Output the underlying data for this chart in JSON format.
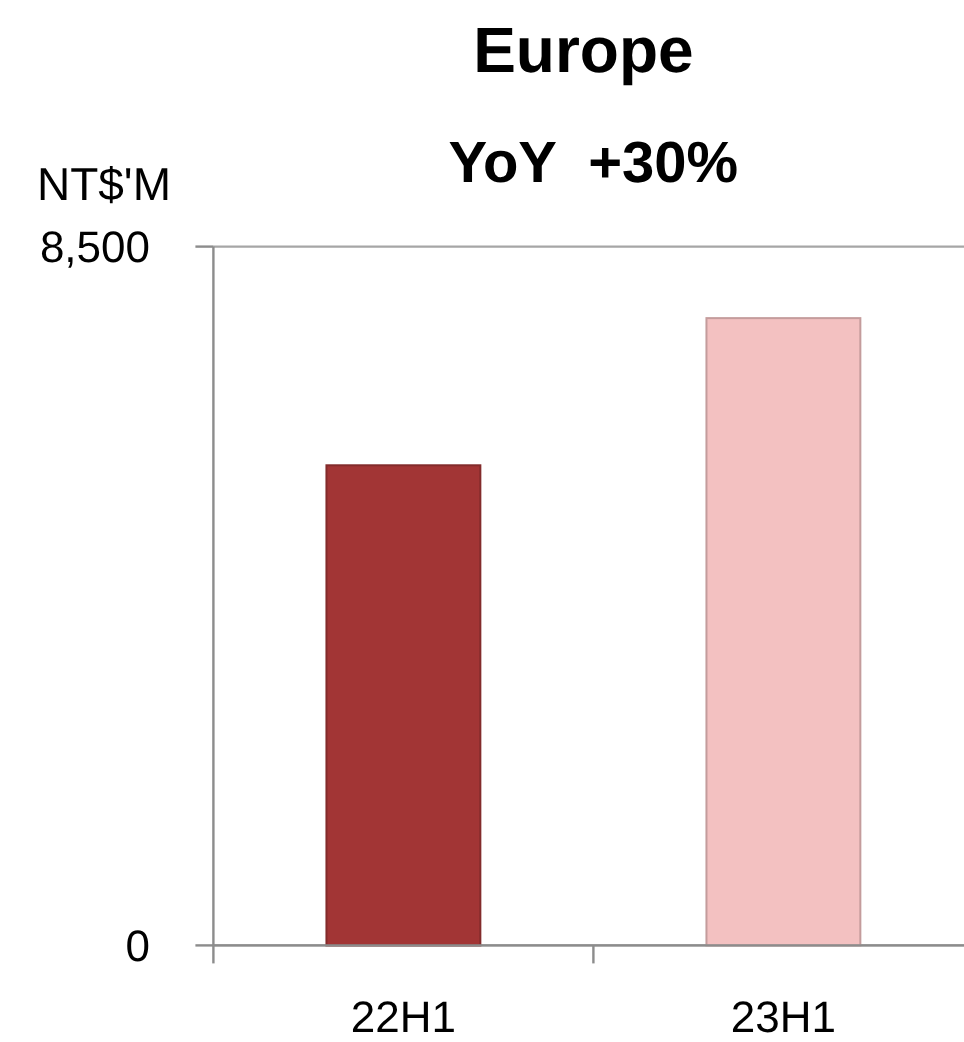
{
  "chart_data": {
    "type": "bar",
    "title": "Europe",
    "subtitle": "YoY  +30%",
    "ylabel": "NT$'M",
    "categories": [
      "22H1",
      "23H1"
    ],
    "values": [
      5840,
      7630
    ],
    "colors": [
      "#a23535",
      "#f3c1c1"
    ],
    "ylim": [
      0,
      8500
    ],
    "yticks": [
      0,
      {
        "value": 8500,
        "label": "8,500"
      }
    ],
    "grid": "y"
  }
}
